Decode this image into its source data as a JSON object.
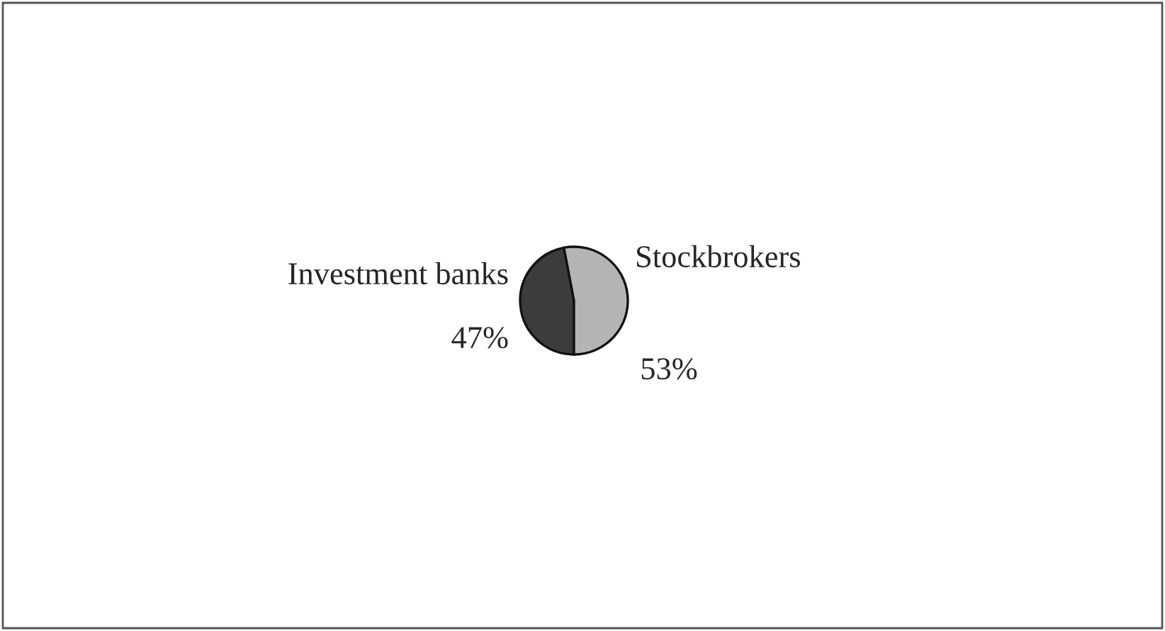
{
  "chart_data": {
    "type": "pie",
    "categories": [
      "Investment banks",
      "Stockbrokers"
    ],
    "values": [
      47,
      53
    ],
    "value_labels": [
      "47%",
      "53%"
    ],
    "colors": [
      "#3c3c3c",
      "#b4b4b4"
    ],
    "legend": false
  }
}
